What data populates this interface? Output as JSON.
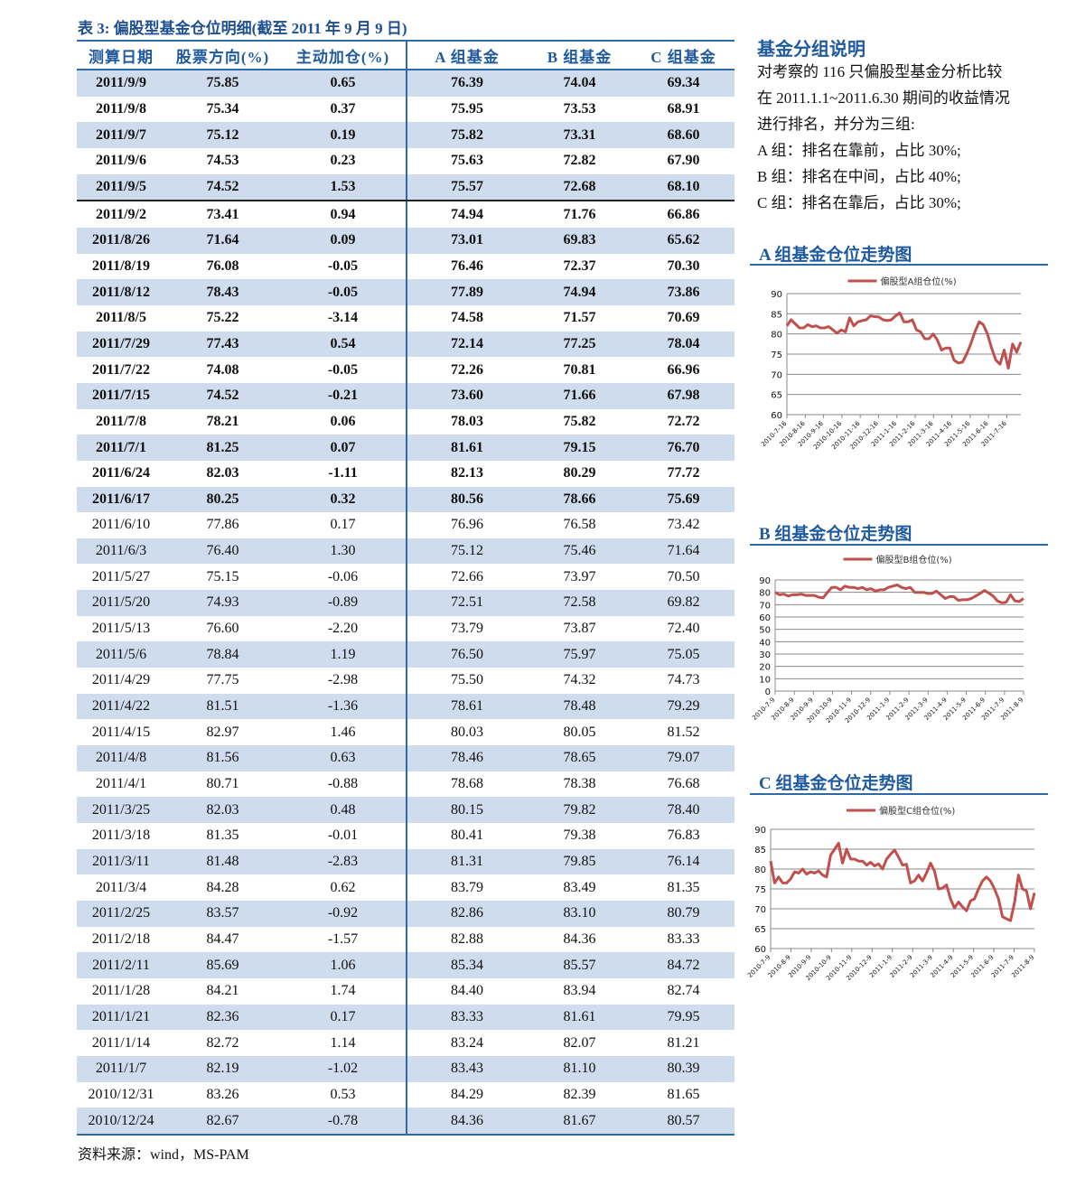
{
  "table": {
    "title": "表 3:  偏股型基金仓位明细(截至 2011 年 9 月 9 日)",
    "headers": [
      "测算日期",
      "股票方向(%)",
      "主动加仓(%)",
      "A 组基金",
      "B 组基金",
      "C 组基金"
    ],
    "rows": [
      [
        "2011/9/9",
        "75.85",
        "0.65",
        "76.39",
        "74.04",
        "69.34"
      ],
      [
        "2011/9/8",
        "75.34",
        "0.37",
        "75.95",
        "73.53",
        "68.91"
      ],
      [
        "2011/9/7",
        "75.12",
        "0.19",
        "75.82",
        "73.31",
        "68.60"
      ],
      [
        "2011/9/6",
        "74.53",
        "0.23",
        "75.63",
        "72.82",
        "67.90"
      ],
      [
        "2011/9/5",
        "74.52",
        "1.53",
        "75.57",
        "72.68",
        "68.10"
      ],
      [
        "2011/9/2",
        "73.41",
        "0.94",
        "74.94",
        "71.76",
        "66.86"
      ],
      [
        "2011/8/26",
        "71.64",
        "0.09",
        "73.01",
        "69.83",
        "65.62"
      ],
      [
        "2011/8/19",
        "76.08",
        "-0.05",
        "76.46",
        "72.37",
        "70.30"
      ],
      [
        "2011/8/12",
        "78.43",
        "-0.05",
        "77.89",
        "74.94",
        "73.86"
      ],
      [
        "2011/8/5",
        "75.22",
        "-3.14",
        "74.58",
        "71.57",
        "70.69"
      ],
      [
        "2011/7/29",
        "77.43",
        "0.54",
        "72.14",
        "77.25",
        "78.04"
      ],
      [
        "2011/7/22",
        "74.08",
        "-0.05",
        "72.26",
        "70.81",
        "66.96"
      ],
      [
        "2011/7/15",
        "74.52",
        "-0.21",
        "73.60",
        "71.66",
        "67.98"
      ],
      [
        "2011/7/8",
        "78.21",
        "0.06",
        "78.03",
        "75.82",
        "72.72"
      ],
      [
        "2011/7/1",
        "81.25",
        "0.07",
        "81.61",
        "79.15",
        "76.70"
      ],
      [
        "2011/6/24",
        "82.03",
        "-1.11",
        "82.13",
        "80.29",
        "77.72"
      ],
      [
        "2011/6/17",
        "80.25",
        "0.32",
        "80.56",
        "78.66",
        "75.69"
      ],
      [
        "2011/6/10",
        "77.86",
        "0.17",
        "76.96",
        "76.58",
        "73.42"
      ],
      [
        "2011/6/3",
        "76.40",
        "1.30",
        "75.12",
        "75.46",
        "71.64"
      ],
      [
        "2011/5/27",
        "75.15",
        "-0.06",
        "72.66",
        "73.97",
        "70.50"
      ],
      [
        "2011/5/20",
        "74.93",
        "-0.89",
        "72.51",
        "72.58",
        "69.82"
      ],
      [
        "2011/5/13",
        "76.60",
        "-2.20",
        "73.79",
        "73.87",
        "72.40"
      ],
      [
        "2011/5/6",
        "78.84",
        "1.19",
        "76.50",
        "75.97",
        "75.05"
      ],
      [
        "2011/4/29",
        "77.75",
        "-2.98",
        "75.50",
        "74.32",
        "74.73"
      ],
      [
        "2011/4/22",
        "81.51",
        "-1.36",
        "78.61",
        "78.48",
        "79.29"
      ],
      [
        "2011/4/15",
        "82.97",
        "1.46",
        "80.03",
        "80.05",
        "81.52"
      ],
      [
        "2011/4/8",
        "81.56",
        "0.63",
        "78.46",
        "78.65",
        "79.07"
      ],
      [
        "2011/4/1",
        "80.71",
        "-0.88",
        "78.68",
        "78.38",
        "76.68"
      ],
      [
        "2011/3/25",
        "82.03",
        "0.48",
        "80.15",
        "79.82",
        "78.40"
      ],
      [
        "2011/3/18",
        "81.35",
        "-0.01",
        "80.41",
        "79.38",
        "76.83"
      ],
      [
        "2011/3/11",
        "81.48",
        "-2.83",
        "81.31",
        "79.85",
        "76.14"
      ],
      [
        "2011/3/4",
        "84.28",
        "0.62",
        "83.79",
        "83.49",
        "81.35"
      ],
      [
        "2011/2/25",
        "83.57",
        "-0.92",
        "82.86",
        "83.10",
        "80.79"
      ],
      [
        "2011/2/18",
        "84.47",
        "-1.57",
        "82.88",
        "84.36",
        "83.33"
      ],
      [
        "2011/2/11",
        "85.69",
        "1.06",
        "85.34",
        "85.57",
        "84.72"
      ],
      [
        "2011/1/28",
        "84.21",
        "1.74",
        "84.40",
        "83.94",
        "82.74"
      ],
      [
        "2011/1/21",
        "82.36",
        "0.17",
        "83.33",
        "81.61",
        "79.95"
      ],
      [
        "2011/1/14",
        "82.72",
        "1.14",
        "83.24",
        "82.07",
        "81.21"
      ],
      [
        "2011/1/7",
        "82.19",
        "-1.02",
        "83.43",
        "81.10",
        "80.39"
      ],
      [
        "2010/12/31",
        "83.26",
        "0.53",
        "84.29",
        "82.39",
        "81.65"
      ],
      [
        "2010/12/24",
        "82.67",
        "-0.78",
        "84.36",
        "81.67",
        "80.57"
      ]
    ],
    "bold_rows_count": 17,
    "shade_color": "#cedced",
    "source": "资料来源：wind，MS-PAM"
  },
  "sidebar": {
    "title": "基金分组说明",
    "lines": [
      "对考察的 116 只偏股型基金分析比较",
      "在 2011.1.1~2011.6.30 期间的收益情况",
      "进行排名，并分为三组:",
      "A 组：排名在靠前，占比 30%;",
      "B 组：排名在中间，占比 40%;",
      "C 组：排名在靠后，占比 30%;"
    ],
    "section_a": "A 组基金仓位走势图",
    "section_b": "B 组基金仓位走势图",
    "section_c": "C 组基金仓位走势图"
  },
  "chart_data": [
    {
      "type": "line",
      "legend": "偏股型A组仓位(%)",
      "legend_position": "top",
      "grid": true,
      "line_color": "#c0504d",
      "ylim": [
        60,
        90
      ],
      "yticks": [
        60,
        65,
        70,
        75,
        80,
        85,
        90
      ],
      "xtick_labels": [
        "2010-7-16",
        "2010-8-16",
        "2010-9-16",
        "2010-10-16",
        "2010-11-16",
        "2010-12-16",
        "2011-1-16",
        "2011-2-16",
        "2011-3-16",
        "2011-4-16",
        "2011-5-16",
        "2011-6-16",
        "2011-7-16"
      ],
      "values": [
        82,
        83.5,
        82.5,
        81.5,
        81.5,
        82.3,
        81.8,
        82,
        81.5,
        81.5,
        81.8,
        81,
        80.2,
        81,
        80.5,
        84,
        82,
        83,
        83.3,
        83.5,
        84.5,
        84.3,
        84.2,
        83.5,
        83.3,
        83.5,
        84.5,
        85.2,
        83,
        83,
        83.5,
        81,
        80.5,
        78.8,
        78.8,
        80,
        78.5,
        76,
        76.5,
        76.5,
        73.5,
        72.8,
        73,
        75,
        77.5,
        80.5,
        83,
        82.3,
        80,
        76.5,
        73.5,
        72.5,
        76,
        71.5,
        77.5,
        75.5,
        78
      ]
    },
    {
      "type": "line",
      "legend": "偏股型B组仓位(%)",
      "legend_position": "top",
      "grid": true,
      "line_color": "#c0504d",
      "ylim": [
        0,
        90
      ],
      "yticks": [
        0,
        10,
        20,
        30,
        40,
        50,
        60,
        70,
        80,
        90
      ],
      "xtick_labels": [
        "2010-7-9",
        "2010-8-9",
        "2010-9-9",
        "2010-10-9",
        "2010-11-9",
        "2010-12-9",
        "2011-1-9",
        "2011-2-9",
        "2011-3-9",
        "2011-4-9",
        "2011-5-9",
        "2011-6-9",
        "2011-7-9",
        "2011-8-9"
      ],
      "values": [
        80,
        78,
        78.5,
        77,
        78,
        78,
        78.5,
        77.5,
        77.5,
        77.5,
        76,
        75.5,
        80,
        84,
        84,
        82,
        85,
        84,
        84,
        83,
        84,
        82,
        83,
        81,
        82,
        82,
        84,
        85,
        86,
        84,
        83,
        84,
        80,
        80,
        80,
        79,
        79,
        81,
        78,
        75,
        76.5,
        76.5,
        73.5,
        74,
        74,
        75,
        77,
        79,
        81.5,
        79.5,
        77,
        73,
        71.5,
        72,
        78,
        73,
        72.5,
        75
      ]
    },
    {
      "type": "line",
      "legend": "偏股型C组仓位(%)",
      "legend_position": "top",
      "grid": true,
      "line_color": "#c0504d",
      "ylim": [
        60,
        90
      ],
      "yticks": [
        60,
        65,
        70,
        75,
        80,
        85,
        90
      ],
      "xtick_labels": [
        "2010-7-9",
        "2010-8-9",
        "2010-9-9",
        "2010-10-9",
        "2010-11-9",
        "2010-12-9",
        "2011-1-9",
        "2011-2-9",
        "2011-3-9",
        "2011-4-9",
        "2011-5-9",
        "2011-6-9",
        "2011-7-9",
        "2011-8-9"
      ],
      "values": [
        82,
        76.5,
        78,
        76.5,
        76.5,
        77.5,
        79.3,
        79,
        80,
        78.7,
        79.3,
        79,
        79.5,
        78.5,
        78,
        83.5,
        85,
        86.5,
        81.5,
        85,
        82.5,
        82.5,
        82,
        82,
        81,
        81.7,
        80.8,
        81.3,
        80,
        82.5,
        83.7,
        84.8,
        83,
        81,
        81.2,
        76.5,
        77,
        78.5,
        77,
        79,
        81.5,
        79.5,
        75,
        75.2,
        76,
        72.5,
        70.2,
        71.7,
        70.5,
        69.5,
        72,
        72.5,
        75,
        77,
        78,
        77,
        75,
        72.5,
        68,
        67.5,
        67,
        71.5,
        78.5,
        75,
        74.5,
        70,
        74
      ]
    }
  ]
}
